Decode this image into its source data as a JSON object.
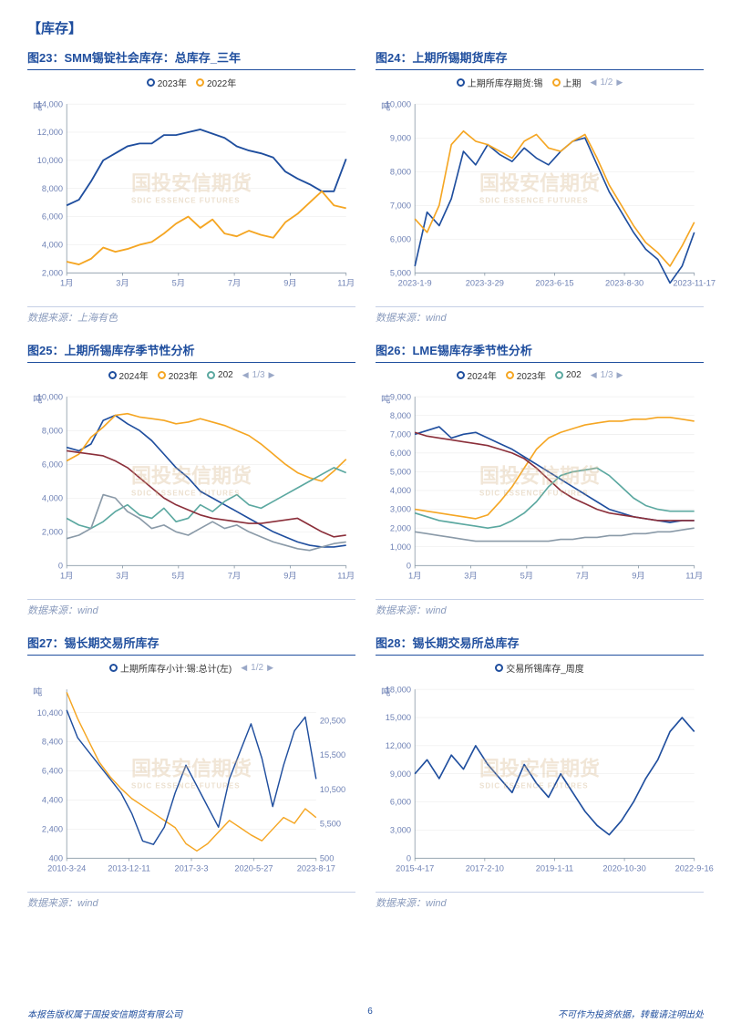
{
  "section_title": "【库存】",
  "watermark_main": "国投安信期货",
  "watermark_sub": "SDIC ESSENCE FUTURES",
  "source_prefix": "数据来源：",
  "footer_left": "本报告版权属于国投安信期货有限公司",
  "footer_right": "不可作为投资依据，转载请注明出处",
  "page_number": "6",
  "colors": {
    "series_blue": "#1f4e9e",
    "series_orange": "#f5a623",
    "series_teal": "#5ba8a0",
    "series_maroon": "#8b2f3a",
    "series_gray": "#8a9aa8",
    "axis": "#8a9aa8",
    "grid": "#e8e8e8",
    "title": "#1f4e9e",
    "border": "#c5d0e6"
  },
  "charts": [
    {
      "id": "c23",
      "title": "图23：SMM锡锭社会库存：总库存_三年",
      "source": "上海有色",
      "ylabel": "吨",
      "type": "line",
      "xticks": [
        "1月",
        "3月",
        "5月",
        "7月",
        "9月",
        "11月"
      ],
      "ylim": [
        2000,
        14000
      ],
      "ystep": 2000,
      "legend": [
        {
          "label": "2023年",
          "color": "#1f4e9e"
        },
        {
          "label": "2022年",
          "color": "#f5a623"
        }
      ],
      "pager": null,
      "series": [
        {
          "color": "#1f4e9e",
          "width": 1.8,
          "data": [
            6800,
            7200,
            8500,
            10000,
            10500,
            11000,
            11200,
            11200,
            11800,
            11800,
            12000,
            12200,
            11900,
            11600,
            11000,
            10700,
            10500,
            10200,
            9200,
            8700,
            8300,
            7800,
            7800,
            10100
          ]
        },
        {
          "color": "#f5a623",
          "width": 1.8,
          "data": [
            2800,
            2600,
            3000,
            3800,
            3500,
            3700,
            4000,
            4200,
            4800,
            5500,
            6000,
            5200,
            5800,
            4800,
            4600,
            5000,
            4700,
            4500,
            5600,
            6200,
            7000,
            7800,
            6800,
            6600
          ]
        }
      ]
    },
    {
      "id": "c24",
      "title": "图24：上期所锡期货库存",
      "source": "wind",
      "ylabel": "吨",
      "type": "line",
      "xticks": [
        "2023-1-9",
        "2023-3-29",
        "2023-6-15",
        "2023-8-30",
        "2023-11-17"
      ],
      "ylim": [
        5000,
        10000
      ],
      "ystep": 1000,
      "legend": [
        {
          "label": "上期所库存期货:锡",
          "color": "#1f4e9e"
        },
        {
          "label": "上期",
          "color": "#f5a623"
        }
      ],
      "pager": "1/2",
      "series": [
        {
          "color": "#1f4e9e",
          "width": 1.6,
          "data": [
            5200,
            6800,
            6400,
            7200,
            8600,
            8200,
            8800,
            8500,
            8300,
            8700,
            8400,
            8200,
            8600,
            8900,
            9000,
            8200,
            7400,
            6800,
            6200,
            5700,
            5400,
            4700,
            5200,
            6200
          ]
        },
        {
          "color": "#f5a623",
          "width": 1.6,
          "data": [
            6600,
            6200,
            7000,
            8800,
            9200,
            8900,
            8800,
            8600,
            8400,
            8900,
            9100,
            8700,
            8600,
            8900,
            9100,
            8400,
            7600,
            7000,
            6400,
            5900,
            5600,
            5200,
            5800,
            6500
          ]
        }
      ]
    },
    {
      "id": "c25",
      "title": "图25：上期所锡库存季节性分析",
      "source": "wind",
      "ylabel": "吨",
      "type": "line",
      "xticks": [
        "1月",
        "3月",
        "5月",
        "7月",
        "9月",
        "11月"
      ],
      "ylim": [
        0,
        10000
      ],
      "ystep": 2000,
      "legend": [
        {
          "label": "2024年",
          "color": "#1f4e9e"
        },
        {
          "label": "2023年",
          "color": "#f5a623"
        },
        {
          "label": "202",
          "color": "#5ba8a0"
        }
      ],
      "pager": "1/3",
      "series": [
        {
          "color": "#1f4e9e",
          "width": 1.6,
          "data": [
            7000,
            6800,
            7200,
            8600,
            8900,
            8400,
            8000,
            7400,
            6600,
            5800,
            5200,
            4400,
            4000,
            3600,
            3200,
            2800,
            2400,
            2000,
            1700,
            1400,
            1200,
            1100,
            1100,
            1200
          ]
        },
        {
          "color": "#f5a623",
          "width": 1.6,
          "data": [
            6200,
            6600,
            7600,
            8200,
            8900,
            9000,
            8800,
            8700,
            8600,
            8400,
            8500,
            8700,
            8500,
            8300,
            8000,
            7700,
            7200,
            6600,
            6000,
            5500,
            5200,
            5000,
            5600,
            6300
          ]
        },
        {
          "color": "#5ba8a0",
          "width": 1.6,
          "data": [
            2800,
            2400,
            2200,
            2600,
            3200,
            3600,
            3000,
            2800,
            3400,
            2600,
            2800,
            3600,
            3200,
            3800,
            4200,
            3600,
            3400,
            3800,
            4200,
            4600,
            5000,
            5400,
            5800,
            5500
          ]
        },
        {
          "color": "#8b2f3a",
          "width": 1.6,
          "data": [
            6800,
            6700,
            6600,
            6500,
            6200,
            5800,
            5200,
            4600,
            4000,
            3600,
            3300,
            3000,
            2800,
            2700,
            2600,
            2500,
            2500,
            2600,
            2700,
            2800,
            2400,
            2000,
            1700,
            1800
          ]
        },
        {
          "color": "#8a9aa8",
          "width": 1.6,
          "data": [
            1600,
            1800,
            2200,
            4200,
            4000,
            3200,
            2800,
            2200,
            2400,
            2000,
            1800,
            2200,
            2600,
            2200,
            2400,
            2000,
            1700,
            1400,
            1200,
            1000,
            900,
            1100,
            1300,
            1400
          ]
        }
      ]
    },
    {
      "id": "c26",
      "title": "图26：LME锡库存季节性分析",
      "source": "wind",
      "ylabel": "吨",
      "type": "line",
      "xticks": [
        "1月",
        "3月",
        "5月",
        "7月",
        "9月",
        "11月"
      ],
      "ylim": [
        0,
        9000
      ],
      "ystep": 1000,
      "legend": [
        {
          "label": "2024年",
          "color": "#1f4e9e"
        },
        {
          "label": "2023年",
          "color": "#f5a623"
        },
        {
          "label": "202",
          "color": "#5ba8a0"
        }
      ],
      "pager": "1/3",
      "series": [
        {
          "color": "#f5a623",
          "width": 1.6,
          "data": [
            3000,
            2900,
            2800,
            2700,
            2600,
            2500,
            2700,
            3400,
            4200,
            5200,
            6200,
            6800,
            7100,
            7300,
            7500,
            7600,
            7700,
            7700,
            7800,
            7800,
            7900,
            7900,
            7800,
            7700
          ]
        },
        {
          "color": "#1f4e9e",
          "width": 1.6,
          "data": [
            7000,
            7200,
            7400,
            6800,
            7000,
            7100,
            6800,
            6500,
            6200,
            5800,
            5400,
            5000,
            4600,
            4200,
            3800,
            3400,
            3000,
            2800,
            2600,
            2500,
            2400,
            2300,
            2400,
            2400
          ]
        },
        {
          "color": "#8b2f3a",
          "width": 1.6,
          "data": [
            7100,
            6900,
            6800,
            6700,
            6600,
            6500,
            6400,
            6200,
            6000,
            5700,
            5200,
            4600,
            4000,
            3600,
            3300,
            3000,
            2800,
            2700,
            2600,
            2500,
            2400,
            2400,
            2400,
            2400
          ]
        },
        {
          "color": "#5ba8a0",
          "width": 1.6,
          "data": [
            2800,
            2600,
            2400,
            2300,
            2200,
            2100,
            2000,
            2100,
            2400,
            2800,
            3400,
            4200,
            4800,
            5000,
            5100,
            5200,
            4800,
            4200,
            3600,
            3200,
            3000,
            2900,
            2900,
            2900
          ]
        },
        {
          "color": "#8a9aa8",
          "width": 1.6,
          "data": [
            1800,
            1700,
            1600,
            1500,
            1400,
            1300,
            1300,
            1300,
            1300,
            1300,
            1300,
            1300,
            1400,
            1400,
            1500,
            1500,
            1600,
            1600,
            1700,
            1700,
            1800,
            1800,
            1900,
            2000
          ]
        }
      ]
    },
    {
      "id": "c27",
      "title": "图27：锡长期交易所库存",
      "source": "wind",
      "ylabel": "吨",
      "type": "dual",
      "xticks": [
        "2010-3-24",
        "2013-12-11",
        "2017-3-3",
        "2020-5-27",
        "2023-8-17"
      ],
      "ylim": [
        400,
        12000
      ],
      "ystep": 2000,
      "ylim2": [
        500,
        25000
      ],
      "ystep2": 5000,
      "legend": [
        {
          "label": "上期所库存小计:锡:总计(左)",
          "color": "#1f4e9e"
        }
      ],
      "pager": "1/2",
      "series": [
        {
          "color": "#f5a623",
          "width": 1.4,
          "axis": "left",
          "data": [
            11800,
            10000,
            8500,
            7000,
            6000,
            5200,
            4500,
            4000,
            3500,
            3000,
            2500,
            1400,
            900,
            1400,
            2200,
            3000,
            2500,
            2000,
            1600,
            2400,
            3200,
            2800,
            3800,
            3200
          ]
        },
        {
          "color": "#1f4e9e",
          "width": 1.4,
          "axis": "right",
          "data": [
            22000,
            18000,
            16000,
            14000,
            12000,
            10000,
            7000,
            3000,
            2500,
            5000,
            10000,
            14000,
            11000,
            8000,
            5000,
            12000,
            16000,
            20000,
            15000,
            8000,
            14000,
            19000,
            21000,
            12000
          ]
        }
      ]
    },
    {
      "id": "c28",
      "title": "图28：锡长期交易所总库存",
      "source": "wind",
      "ylabel": "吨",
      "type": "line",
      "xticks": [
        "2015-4-17",
        "2017-2-10",
        "2019-1-11",
        "2020-10-30",
        "2022-9-16"
      ],
      "ylim": [
        0,
        18000
      ],
      "ystep": 3000,
      "legend": [
        {
          "label": "交易所锡库存_周度",
          "color": "#1f4e9e"
        }
      ],
      "pager": null,
      "series": [
        {
          "color": "#1f4e9e",
          "width": 1.6,
          "data": [
            9000,
            10500,
            8500,
            11000,
            9500,
            12000,
            10000,
            8500,
            7000,
            10000,
            8000,
            6500,
            9000,
            7000,
            5000,
            3500,
            2500,
            4000,
            6000,
            8500,
            10500,
            13500,
            15000,
            13500
          ]
        }
      ]
    }
  ]
}
